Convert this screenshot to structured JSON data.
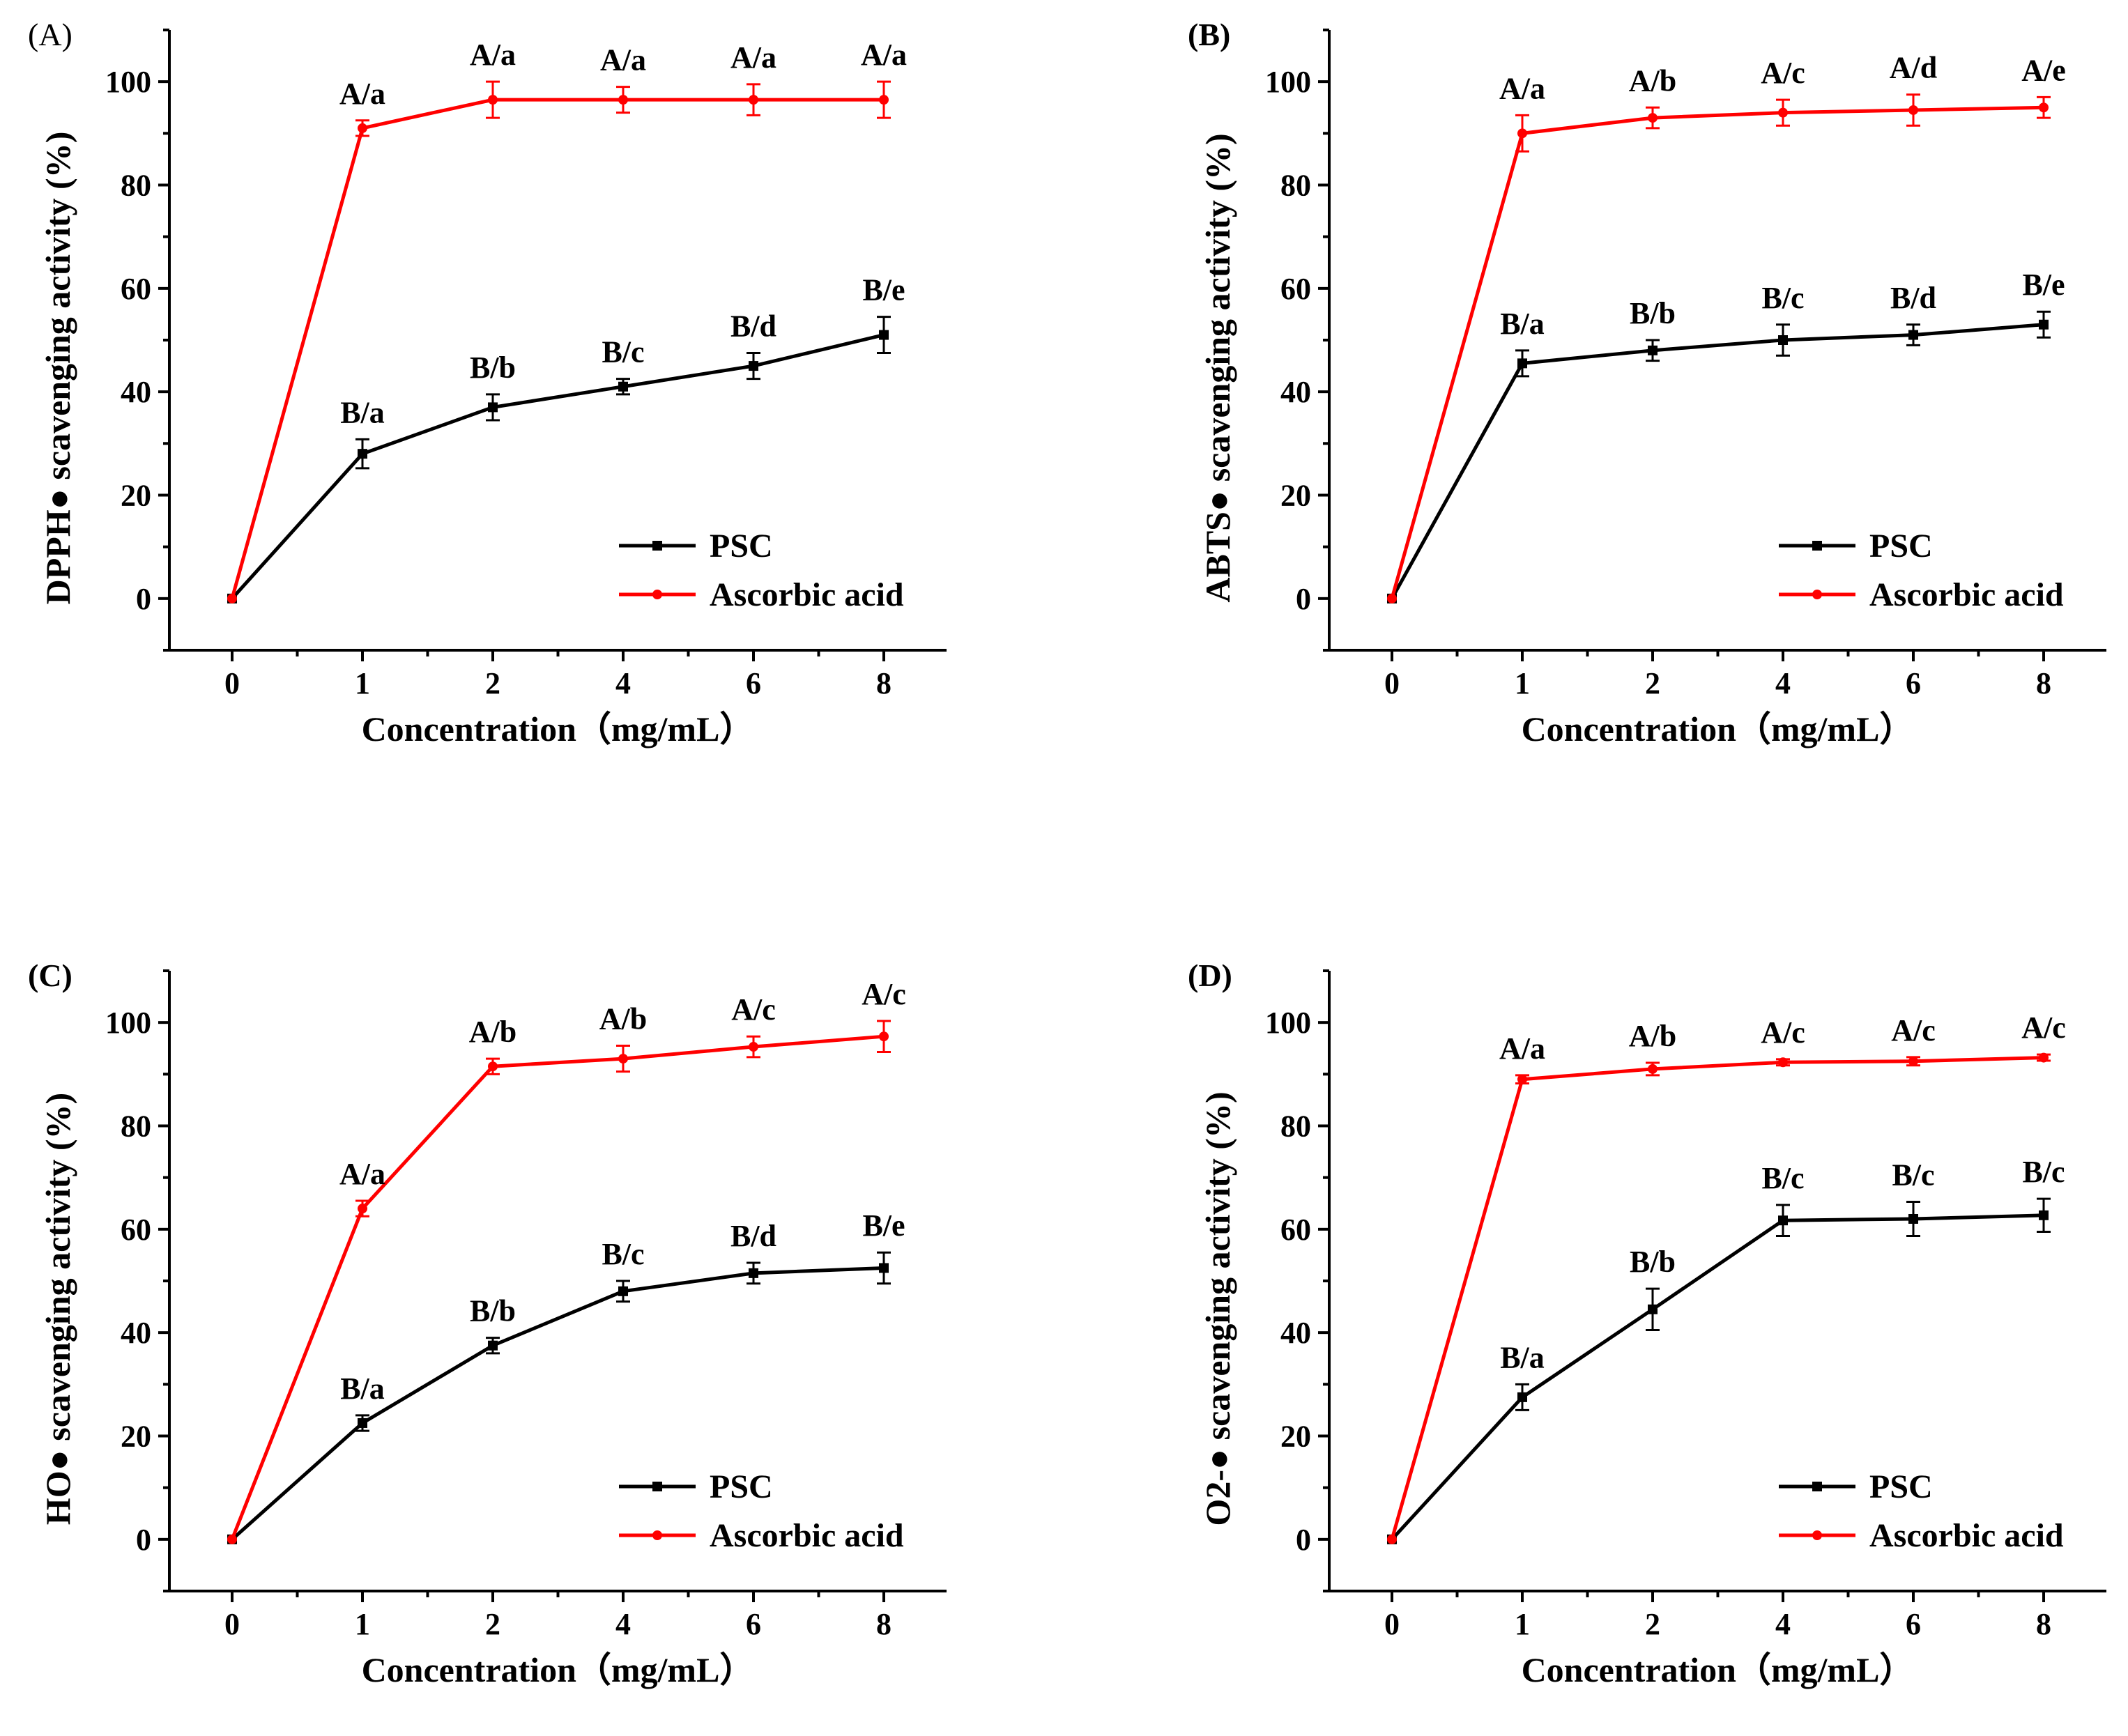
{
  "colors": {
    "psc": "#000000",
    "ascorbic": "#ff0000"
  },
  "chart_data": [
    {
      "type": "line",
      "panel_label": "(A)",
      "panel_label_bold": false,
      "categories": [
        "0",
        "1",
        "2",
        "4",
        "6",
        "8"
      ],
      "xlabel": "Concentration（mg/mL）",
      "ylabel": "DPPH● scavenging activity (%)",
      "ylim": [
        -10,
        110
      ],
      "yticks": [
        0,
        20,
        40,
        60,
        80,
        100
      ],
      "legend_position": "bottom-right",
      "series": [
        {
          "name": "PSC",
          "color_key": "psc",
          "marker": "square",
          "values": [
            0,
            28,
            37,
            41,
            45,
            51
          ],
          "errors": [
            0,
            2.8,
            2.5,
            1.5,
            2.5,
            3.5
          ],
          "labels": [
            "",
            "B/a",
            "B/b",
            "B/c",
            "B/d",
            "B/e"
          ]
        },
        {
          "name": "Ascorbic acid",
          "color_key": "ascorbic",
          "marker": "circle",
          "values": [
            0,
            91,
            96.5,
            96.5,
            96.5,
            96.5
          ],
          "errors": [
            0,
            1.5,
            3.5,
            2.5,
            3,
            3.5
          ],
          "labels": [
            "",
            "A/a",
            "A/a",
            "A/a",
            "A/a",
            "A/a"
          ]
        }
      ]
    },
    {
      "type": "line",
      "panel_label": "(B)",
      "panel_label_bold": true,
      "categories": [
        "0",
        "1",
        "2",
        "4",
        "6",
        "8"
      ],
      "xlabel": "Concentration（mg/mL）",
      "ylabel": "ABTS● scavenging activity (%)",
      "ylim": [
        -10,
        110
      ],
      "yticks": [
        0,
        20,
        40,
        60,
        80,
        100
      ],
      "legend_position": "bottom-right",
      "series": [
        {
          "name": "PSC",
          "color_key": "psc",
          "marker": "square",
          "values": [
            0,
            45.5,
            48,
            50,
            51,
            53
          ],
          "errors": [
            0,
            2.5,
            2,
            3,
            2,
            2.5
          ],
          "labels": [
            "",
            "B/a",
            "B/b",
            "B/c",
            "B/d",
            "B/e"
          ]
        },
        {
          "name": "Ascorbic acid",
          "color_key": "ascorbic",
          "marker": "circle",
          "values": [
            0,
            90,
            93,
            94,
            94.5,
            95
          ],
          "errors": [
            0,
            3.5,
            2,
            2.5,
            3,
            2
          ],
          "labels": [
            "",
            "A/a",
            "A/b",
            "A/c",
            "A/d",
            "A/e"
          ]
        }
      ]
    },
    {
      "type": "line",
      "panel_label": "(C)",
      "panel_label_bold": true,
      "categories": [
        "0",
        "1",
        "2",
        "4",
        "6",
        "8"
      ],
      "xlabel": "Concentration（mg/mL）",
      "ylabel": "HO● scavenging activity (%)",
      "ylim": [
        -10,
        110
      ],
      "yticks": [
        0,
        20,
        40,
        60,
        80,
        100
      ],
      "legend_position": "bottom-right",
      "series": [
        {
          "name": "PSC",
          "color_key": "psc",
          "marker": "square",
          "values": [
            0,
            22.5,
            37.5,
            48,
            51.5,
            52.5
          ],
          "errors": [
            0,
            1.5,
            1.5,
            2,
            2,
            3
          ],
          "labels": [
            "",
            "B/a",
            "B/b",
            "B/c",
            "B/d",
            "B/e"
          ]
        },
        {
          "name": "Ascorbic acid",
          "color_key": "ascorbic",
          "marker": "circle",
          "values": [
            0,
            64,
            91.5,
            93,
            95.3,
            97.3
          ],
          "errors": [
            0,
            1.5,
            1.5,
            2.5,
            2,
            3
          ],
          "labels": [
            "",
            "A/a",
            "A/b",
            "A/b",
            "A/c",
            "A/c"
          ]
        }
      ]
    },
    {
      "type": "line",
      "panel_label": "(D)",
      "panel_label_bold": true,
      "categories": [
        "0",
        "1",
        "2",
        "4",
        "6",
        "8"
      ],
      "xlabel": "Concentration（mg/mL）",
      "ylabel": "O2-● scavenging activity (%)",
      "ylim": [
        -10,
        110
      ],
      "yticks": [
        0,
        20,
        40,
        60,
        80,
        100
      ],
      "legend_position": "bottom-right",
      "series": [
        {
          "name": "PSC",
          "color_key": "psc",
          "marker": "square",
          "values": [
            0,
            27.5,
            44.5,
            61.7,
            62,
            62.7
          ],
          "errors": [
            0,
            2.5,
            4,
            3,
            3.3,
            3.2
          ],
          "labels": [
            "",
            "B/a",
            "B/b",
            "B/c",
            "B/c",
            "B/c"
          ]
        },
        {
          "name": "Ascorbic acid",
          "color_key": "ascorbic",
          "marker": "circle",
          "values": [
            0,
            89,
            91,
            92.3,
            92.5,
            93.2
          ],
          "errors": [
            0,
            0.8,
            1.2,
            0.6,
            0.8,
            0.6
          ],
          "labels": [
            "",
            "A/a",
            "A/b",
            "A/c",
            "A/c",
            "A/c"
          ]
        }
      ]
    }
  ]
}
